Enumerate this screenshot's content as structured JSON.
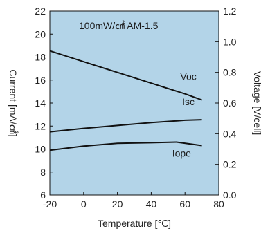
{
  "chart_data": {
    "type": "line",
    "annotation": "100mW/㎠  AM-1.5",
    "xlabel": "Temperature [℃]",
    "ylabel_left": "Current [mA/㎠]",
    "ylabel_right": "Voltage [V/cell]",
    "xlim": [
      -20,
      80
    ],
    "ylim_left": [
      6,
      22
    ],
    "ylim_right": [
      0.0,
      1.2
    ],
    "x_ticks": [
      "-20",
      "0",
      "20",
      "40",
      "60",
      "80"
    ],
    "y_left_ticks": [
      "6",
      "8",
      "10",
      "12",
      "14",
      "16",
      "18",
      "20",
      "22"
    ],
    "y_right_ticks": [
      "0.0",
      "0.2",
      "0.4",
      "0.6",
      "0.8",
      "1.0",
      "1.2"
    ],
    "grid": false,
    "colors": {
      "plot_background": "#b3d4e8",
      "line": "#111111"
    },
    "series": [
      {
        "name": "Voc",
        "axis": "right",
        "x": [
          -20,
          0,
          20,
          40,
          60,
          70
        ],
        "y": [
          0.94,
          0.87,
          0.8,
          0.73,
          0.66,
          0.62
        ]
      },
      {
        "name": "Isc",
        "axis": "left",
        "x": [
          -20,
          0,
          20,
          40,
          60,
          70
        ],
        "y": [
          11.5,
          11.8,
          12.05,
          12.3,
          12.5,
          12.55
        ]
      },
      {
        "name": "Iope",
        "axis": "left",
        "x": [
          -20,
          0,
          20,
          40,
          55,
          70
        ],
        "y": [
          9.9,
          10.25,
          10.5,
          10.55,
          10.6,
          10.3
        ]
      }
    ]
  }
}
